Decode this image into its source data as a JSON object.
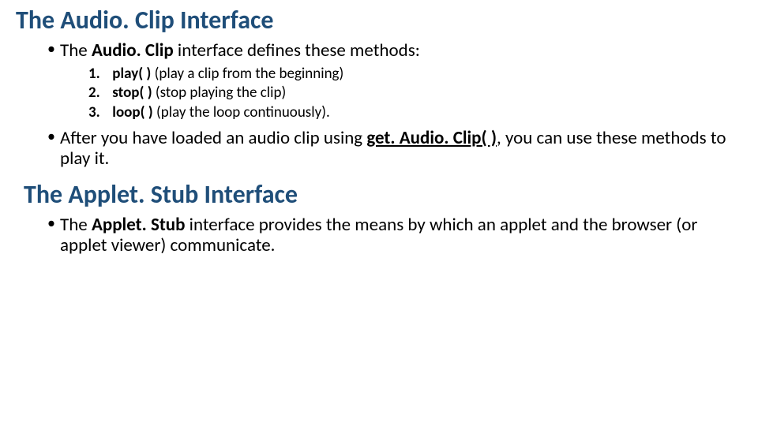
{
  "section1": {
    "heading": "The Audio. Clip Interface",
    "bullet1_prefix": "The ",
    "bullet1_bold": "Audio. Clip",
    "bullet1_suffix": " interface defines these methods:",
    "methods": [
      {
        "num": "1.",
        "name": "play( )",
        "desc": " (play a clip from the beginning)"
      },
      {
        "num": "2.",
        "name": "stop( )",
        "desc": " (stop playing the clip)"
      },
      {
        "num": "3.",
        "name": "loop( )",
        "desc": " (play the loop continuously)."
      }
    ],
    "bullet2_prefix": "After you have loaded an audio clip using ",
    "bullet2_underline": "get. Audio. Clip( )",
    "bullet2_suffix": ", you can use these methods to play it."
  },
  "section2": {
    "heading": "The Applet. Stub Interface",
    "bullet1_prefix": "The ",
    "bullet1_bold": "Applet. Stub",
    "bullet1_suffix": " interface provides the means by which an applet and the browser (or applet viewer) communicate."
  },
  "colors": {
    "heading_color": "#1f4e79",
    "text_color": "#000000",
    "background": "#ffffff"
  },
  "typography": {
    "heading_fontsize": 32,
    "body_fontsize": 23,
    "sublist_fontsize": 19,
    "font_family": "Calibri"
  }
}
